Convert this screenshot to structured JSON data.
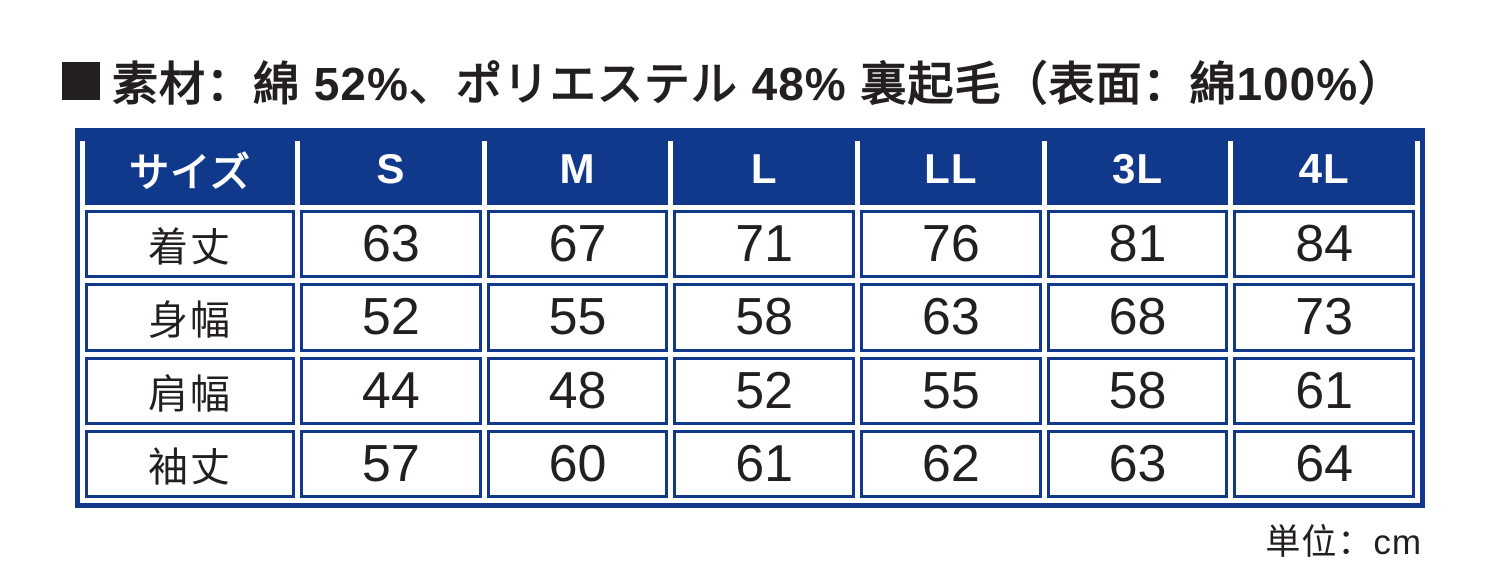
{
  "header": {
    "material_text": "素材：綿 52%、ポリエステル 48% 裏起毛（表面：綿100%）"
  },
  "chart_data": {
    "type": "table",
    "corner_label": "サイズ",
    "columns": [
      "S",
      "M",
      "L",
      "LL",
      "3L",
      "4L"
    ],
    "rows": [
      {
        "label": "着丈",
        "values": [
          63,
          67,
          71,
          76,
          81,
          84
        ]
      },
      {
        "label": "身幅",
        "values": [
          52,
          55,
          58,
          63,
          68,
          73
        ]
      },
      {
        "label": "肩幅",
        "values": [
          44,
          48,
          52,
          55,
          58,
          61
        ]
      },
      {
        "label": "袖丈",
        "values": [
          57,
          60,
          61,
          62,
          63,
          64
        ]
      }
    ],
    "unit": "cm"
  },
  "footer": {
    "unit_label": "単位：cm"
  },
  "colors": {
    "table_blue": "#11398b",
    "text_black": "#231f20",
    "header_text": "#ffffff",
    "background": "#ffffff"
  }
}
